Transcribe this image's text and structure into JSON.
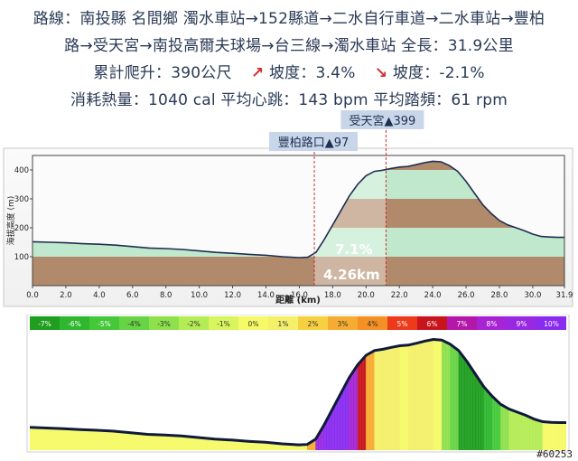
{
  "info": {
    "route_line1": "路線：南投縣 名間鄉 濁水車站→152縣道→二水自行車道→二水車站→豐柏",
    "route_line2": "路→受天宮→南投高爾夫球場→台三線→濁水車站 全長：31.9公里",
    "climb": "累計爬升：390公尺",
    "slope_up": "坡度：3.4%",
    "slope_down": "坡度：-2.1%",
    "stats": "消耗熱量：1040 cal  平均心跳：143 bpm  平均踏頻：61 rpm",
    "up_icon": "arrow-up-right-icon",
    "down_icon": "arrow-down-right-icon"
  },
  "chart_data": [
    {
      "type": "area",
      "title": "",
      "xlabel": "距離 (km)",
      "ylabel": "海拔高度 (m)",
      "xlim": [
        0,
        31.9
      ],
      "ylim": [
        0,
        450
      ],
      "xticks": [
        "0.0",
        "2.0",
        "4.0",
        "6.0",
        "8.0",
        "10.0",
        "12.0",
        "14.0",
        "16.0",
        "18.0",
        "20.0",
        "22.0",
        "24.0",
        "26.0",
        "28.0",
        "30.0",
        "31.9"
      ],
      "yticks": [
        "100",
        "200",
        "300",
        "400"
      ],
      "bands": [
        {
          "from": 0,
          "to": 100,
          "color": "#b08a6a"
        },
        {
          "from": 100,
          "to": 200,
          "color": "#bfe8cc"
        },
        {
          "from": 200,
          "to": 300,
          "color": "#b08a6a"
        },
        {
          "from": 300,
          "to": 400,
          "color": "#bfe8cc"
        },
        {
          "from": 400,
          "to": 450,
          "color": "#b08a6a"
        }
      ],
      "x": [
        0,
        1,
        2,
        3,
        4,
        5,
        6,
        7,
        8,
        9,
        10,
        11,
        12,
        13,
        14,
        15,
        16,
        16.5,
        17,
        17.5,
        18,
        18.5,
        19,
        19.5,
        20,
        20.5,
        21,
        21.5,
        22,
        22.5,
        23,
        23.5,
        24,
        24.5,
        25,
        25.5,
        26,
        26.5,
        27,
        27.5,
        28,
        28.5,
        29,
        29.5,
        30,
        30.5,
        31,
        31.5,
        31.9
      ],
      "y": [
        152,
        150,
        148,
        145,
        143,
        140,
        135,
        130,
        128,
        125,
        120,
        115,
        112,
        108,
        105,
        100,
        97,
        98,
        115,
        160,
        210,
        260,
        310,
        350,
        380,
        395,
        399,
        405,
        410,
        412,
        418,
        425,
        430,
        428,
        415,
        395,
        360,
        320,
        280,
        250,
        225,
        210,
        200,
        190,
        178,
        170,
        168,
        167,
        167
      ],
      "highlight": {
        "from": 16.9,
        "to": 21.2
      },
      "annotations": [
        {
          "label": "豐柏路口▲97",
          "x": 16.9
        },
        {
          "label": "受天宮▲399",
          "x": 21.2
        }
      ],
      "segment_grade": "7.1%",
      "segment_length": "4.26km"
    },
    {
      "type": "area",
      "title": "",
      "grade_legend": [
        "-7%",
        "-6%",
        "-5%",
        "-4%",
        "-3%",
        "-2%",
        "-1%",
        "0%",
        "1%",
        "2%",
        "3%",
        "4%",
        "5%",
        "6%",
        "7%",
        "8%",
        "9%",
        "10%"
      ],
      "grade_colors": [
        "#1f9e1f",
        "#2fb82f",
        "#44c83a",
        "#66d444",
        "#8ee04c",
        "#b4ec55",
        "#d8f55e",
        "#f6fa66",
        "#f4f06a",
        "#f6d040",
        "#f6ac30",
        "#f49024",
        "#ee3a1c",
        "#c8141c",
        "#b418a8",
        "#a624d4",
        "#9828e2",
        "#8a2cf0"
      ],
      "xlim": [
        0,
        31.9
      ],
      "ylim": [
        0,
        450
      ]
    }
  ],
  "credit": "#60253"
}
